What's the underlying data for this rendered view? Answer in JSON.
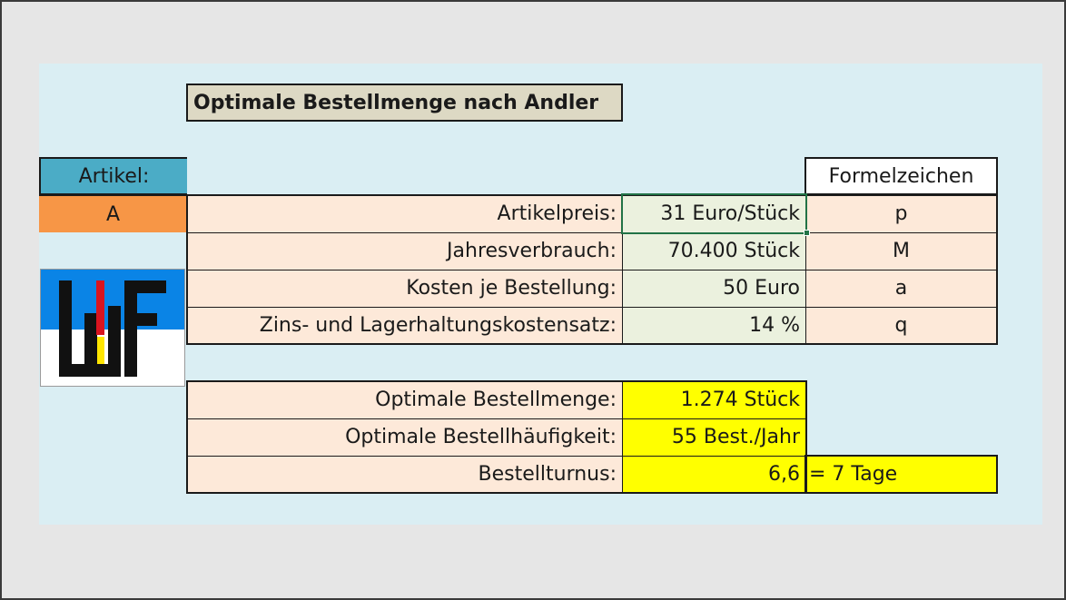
{
  "title": "Optimale Bestellmenge nach Andler",
  "artikel": {
    "label": "Artikel:",
    "value": "A"
  },
  "formel_header": "Formelzeichen",
  "inputs": [
    {
      "label": "Artikelpreis:",
      "value": "31 Euro/Stück",
      "symbol": "p"
    },
    {
      "label": "Jahresverbrauch:",
      "value": "70.400 Stück",
      "symbol": "M"
    },
    {
      "label": "Kosten je Bestellung:",
      "value": "50 Euro",
      "symbol": "a"
    },
    {
      "label": "Zins- und Lagerhaltungskostensatz:",
      "value": "14 %",
      "symbol": "q"
    }
  ],
  "results": [
    {
      "label": "Optimale Bestellmenge:",
      "value": "1.274 Stück"
    },
    {
      "label": "Optimale Bestellhäufigkeit:",
      "value": "55 Best./Jahr"
    },
    {
      "label": "Bestellturnus:",
      "value": "6,6",
      "extra": "= 7 Tage"
    }
  ],
  "logo_icon": "wf-logo-icon",
  "colors": {
    "sheet_bg": "#daeef3",
    "label_bg": "#fde9d9",
    "input_bg": "#ebf1de",
    "result_bg": "#ffff00",
    "artikel_header": "#4bacc6",
    "artikel_value": "#f79646",
    "title_bg": "#ddd9c4"
  }
}
